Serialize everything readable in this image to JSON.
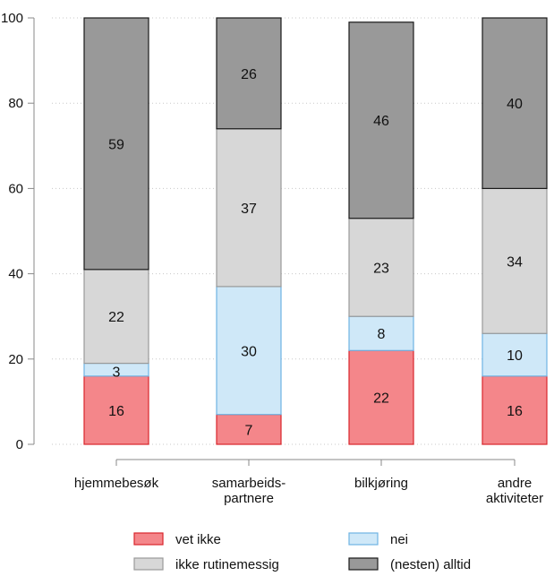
{
  "chart_data": {
    "type": "bar",
    "stacked": true,
    "categories": [
      [
        "hjemmebesøk"
      ],
      [
        "samarbeids-",
        "partnere"
      ],
      [
        "bilkjøring"
      ],
      [
        "andre",
        "aktiviteter"
      ]
    ],
    "series": [
      {
        "name": "vet ikke",
        "values": [
          16,
          7,
          22,
          16
        ],
        "color": "#f4868a",
        "stroke": "#d9262c"
      },
      {
        "name": "nei",
        "values": [
          3,
          30,
          8,
          10
        ],
        "color": "#cfe8f8",
        "stroke": "#6fb3e3"
      },
      {
        "name": "ikke rutinemessig",
        "values": [
          22,
          37,
          23,
          34
        ],
        "color": "#d7d7d7",
        "stroke": "#9a9a9a"
      },
      {
        "name": "(nesten) alltid",
        "values": [
          59,
          26,
          46,
          40
        ],
        "color": "#999999",
        "stroke": "#1a1a1a"
      }
    ],
    "ylim": [
      0,
      100
    ],
    "yticks": [
      0,
      20,
      40,
      60,
      80,
      100
    ],
    "grid": true,
    "legend": "bottom",
    "title": "",
    "xlabel": "",
    "ylabel": ""
  }
}
